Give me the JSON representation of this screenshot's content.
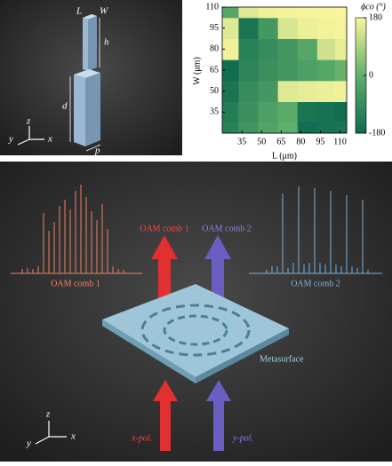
{
  "pillar_labels": [
    "L",
    "W",
    "h",
    "d",
    "p"
  ],
  "pillar_axes": [
    "x",
    "y",
    "z"
  ],
  "chart_data": {
    "type": "heatmap",
    "xlabel": "L (μm)",
    "ylabel": "W (μm)",
    "colorbar_label": "ϕco (°)",
    "x": [
      25,
      40,
      55,
      70,
      85,
      100,
      112
    ],
    "y": [
      22,
      35,
      50,
      65,
      80,
      95,
      110
    ],
    "z": [
      [
        -120,
        -70,
        -30,
        0,
        -170,
        -160,
        -150
      ],
      [
        -130,
        -80,
        -40,
        -10,
        -150,
        -160,
        -170
      ],
      [
        -150,
        -90,
        -60,
        150,
        160,
        165,
        170
      ],
      [
        -170,
        -110,
        -80,
        -60,
        -40,
        -20,
        10
      ],
      [
        170,
        -120,
        -90,
        -60,
        -20,
        130,
        160
      ],
      [
        150,
        -150,
        -60,
        140,
        165,
        172,
        176
      ],
      [
        -20,
        150,
        170,
        175,
        178,
        179,
        180
      ]
    ],
    "xlim": [
      20,
      115
    ],
    "ylim": [
      20,
      110
    ],
    "xticks": [
      35,
      50,
      65,
      80,
      95,
      110
    ],
    "yticks": [
      35,
      50,
      65,
      80,
      95,
      110
    ],
    "clim": [
      -180,
      180
    ],
    "cticks": [
      180,
      0,
      -180
    ],
    "colors": [
      "#0d6a4e",
      "#5fae6b",
      "#f8f59c"
    ]
  },
  "scene": {
    "beam_labels": [
      "OAM comb 1",
      "OAM comb 2"
    ],
    "comb_labels": [
      "OAM comb 1",
      "OAM comb 2"
    ],
    "surface_label": "Metasurface",
    "pol_labels": [
      "x-pol.",
      "y-pol."
    ],
    "axes": [
      "x",
      "y",
      "z"
    ]
  }
}
